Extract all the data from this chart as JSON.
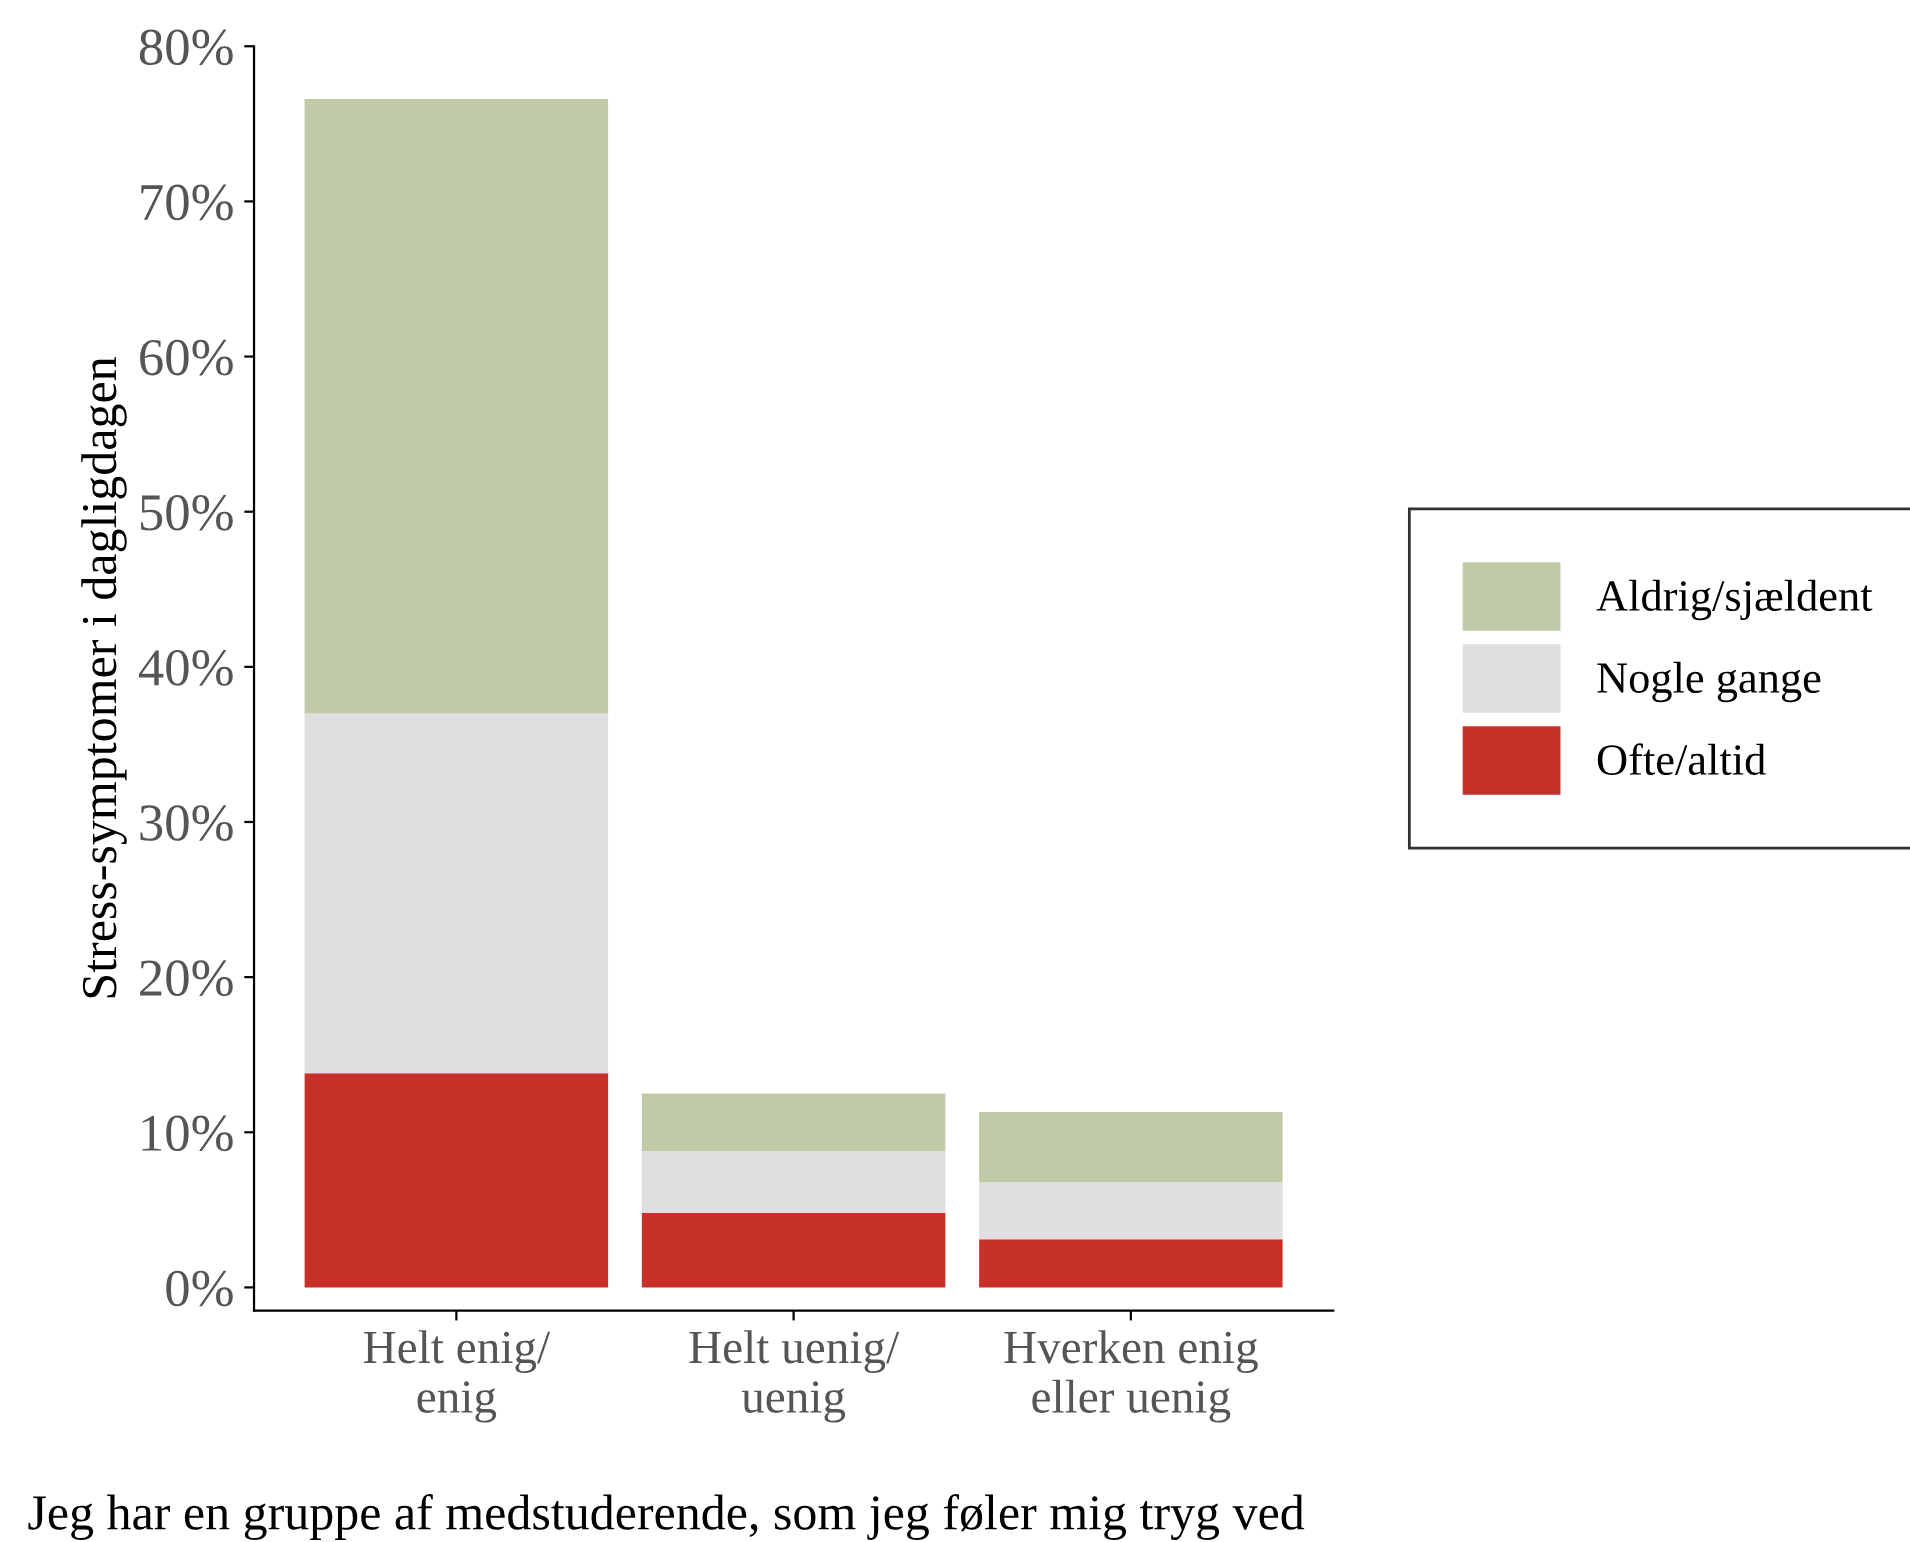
{
  "chart_data": {
    "type": "bar",
    "stacked": true,
    "xlabel": "Jeg har en gruppe af medstuderende, som jeg føler mig tryg ved",
    "ylabel": "Stress-symptomer i dagligdagen",
    "categories": [
      "Helt enig/\nenig",
      "Helt uenig/\nuenig",
      "Hverken enig\neller uenig"
    ],
    "series": [
      {
        "name": "Ofte/altid",
        "color": "#c8302a",
        "values": [
          13.8,
          4.8,
          3.1
        ]
      },
      {
        "name": "Nogle gange",
        "color": "#e0dee0",
        "values": [
          23.2,
          4.0,
          3.7
        ]
      },
      {
        "name": "Aldrig/sjældent",
        "color": "#bfcaa6",
        "values": [
          39.6,
          3.7,
          4.5
        ]
      }
    ],
    "ylim": [
      -1.5,
      80
    ],
    "yticks": [
      {
        "value": 0,
        "label": "0%"
      },
      {
        "value": 10,
        "label": "10%"
      },
      {
        "value": 20,
        "label": "20%"
      },
      {
        "value": 30,
        "label": "30%"
      },
      {
        "value": 40,
        "label": "40%"
      },
      {
        "value": 50,
        "label": "50%"
      },
      {
        "value": 60,
        "label": "60%"
      },
      {
        "value": 70,
        "label": "70%"
      },
      {
        "value": 80,
        "label": "80%"
      }
    ],
    "grid": false,
    "legend": "right"
  }
}
